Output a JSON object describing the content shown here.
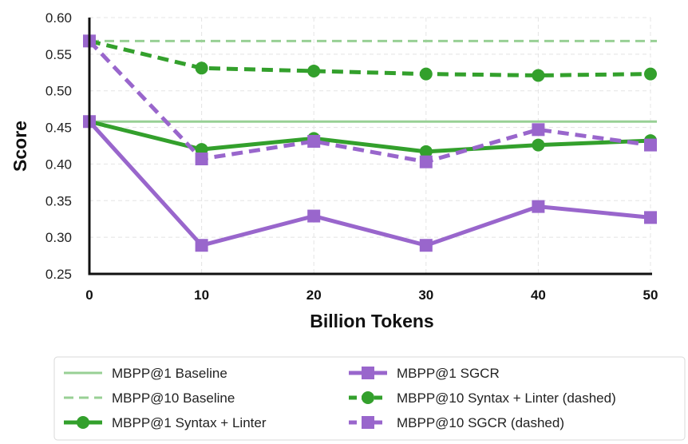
{
  "chart_data": {
    "type": "line",
    "title": "",
    "xlabel": "Billion Tokens",
    "ylabel": "Score",
    "x": [
      0,
      10,
      20,
      30,
      40,
      50
    ],
    "xlim": [
      0,
      50
    ],
    "ylim": [
      0.25,
      0.6
    ],
    "xticks": [
      "0",
      "10",
      "20",
      "30",
      "40",
      "50"
    ],
    "yticks": [
      "0.25",
      "0.30",
      "0.35",
      "0.40",
      "0.45",
      "0.50",
      "0.55",
      "0.60"
    ],
    "grid": true,
    "legend_position": "bottom",
    "series": [
      {
        "name": "MBPP@1 Baseline",
        "kind": "hline",
        "value": 0.458,
        "color": "#98d095",
        "style": "solid",
        "marker": "none"
      },
      {
        "name": "MBPP@10 Baseline",
        "kind": "hline",
        "value": 0.568,
        "color": "#98d095",
        "style": "dashed",
        "marker": "none"
      },
      {
        "name": "MBPP@1 Syntax + Linter",
        "values": [
          0.458,
          0.42,
          0.435,
          0.417,
          0.426,
          0.432
        ],
        "color": "#33a02c",
        "style": "solid",
        "marker": "circle"
      },
      {
        "name": "MBPP@10 Syntax + Linter (dashed)",
        "values": [
          0.568,
          0.531,
          0.527,
          0.523,
          0.521,
          0.523
        ],
        "color": "#33a02c",
        "style": "dashed",
        "marker": "circle"
      },
      {
        "name": "MBPP@1 SGCR",
        "values": [
          0.458,
          0.289,
          0.329,
          0.289,
          0.342,
          0.327
        ],
        "color": "#9966cc",
        "style": "solid",
        "marker": "square"
      },
      {
        "name": "MBPP@10 SGCR (dashed)",
        "values": [
          0.568,
          0.407,
          0.431,
          0.403,
          0.447,
          0.426
        ],
        "color": "#9966cc",
        "style": "dashed",
        "marker": "square"
      }
    ],
    "legend": [
      {
        "label": "MBPP@1 Baseline",
        "series": 0
      },
      {
        "label": "MBPP@1 SGCR",
        "series": 4
      },
      {
        "label": "MBPP@10 Baseline",
        "series": 1
      },
      {
        "label": "MBPP@10 Syntax + Linter (dashed)",
        "series": 3
      },
      {
        "label": "MBPP@1 Syntax + Linter",
        "series": 2
      },
      {
        "label": "MBPP@10 SGCR (dashed)",
        "series": 5
      }
    ]
  }
}
